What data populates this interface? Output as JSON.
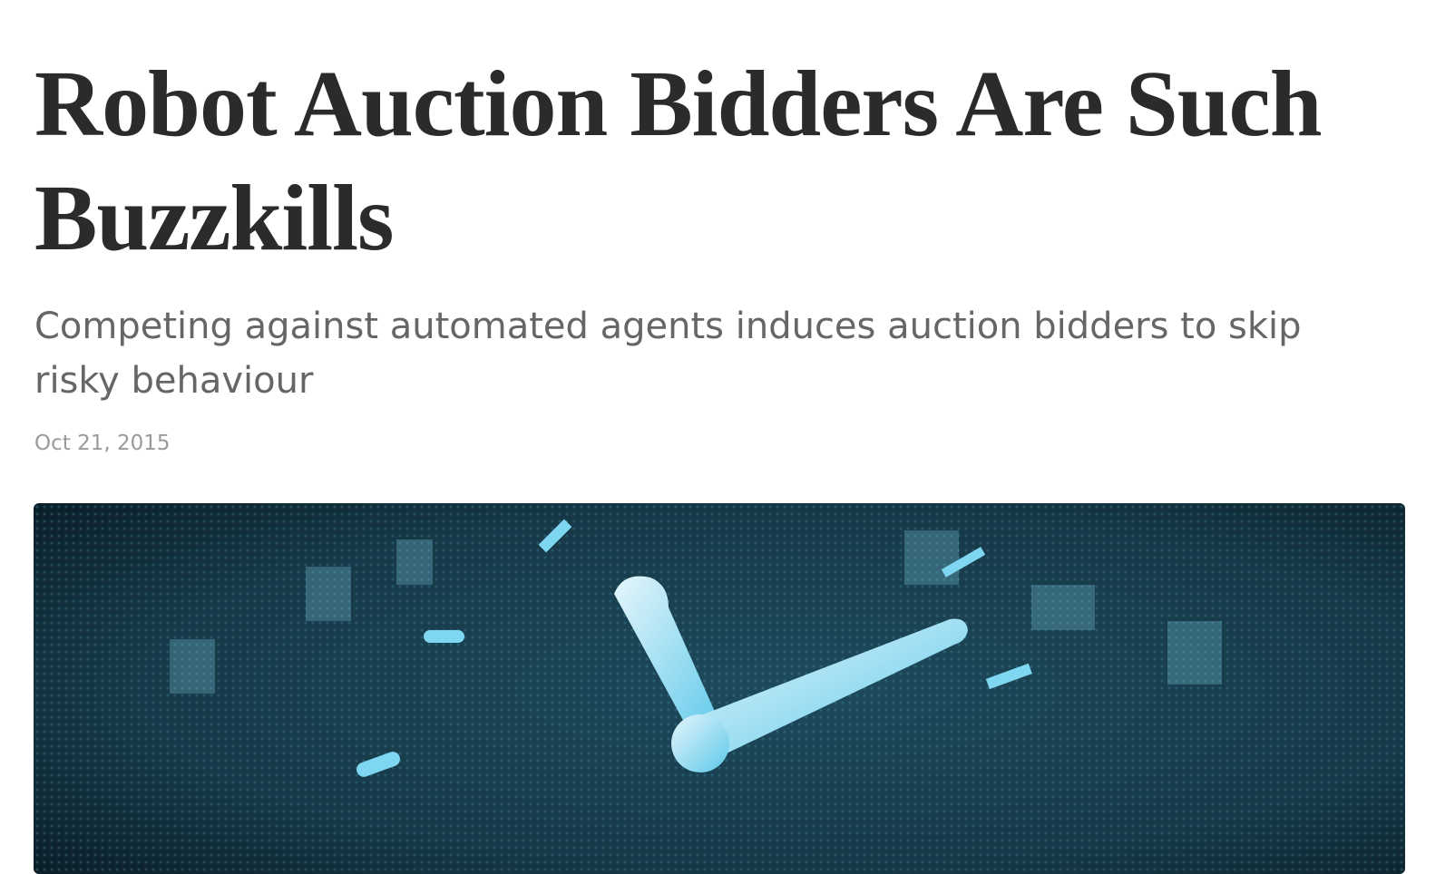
{
  "article": {
    "title": "Robot Auction Bidders Are Such Buzzkills",
    "subtitle": "Competing against automated agents induces auction bidders to skip risky behaviour",
    "date": "Oct 21, 2015"
  }
}
